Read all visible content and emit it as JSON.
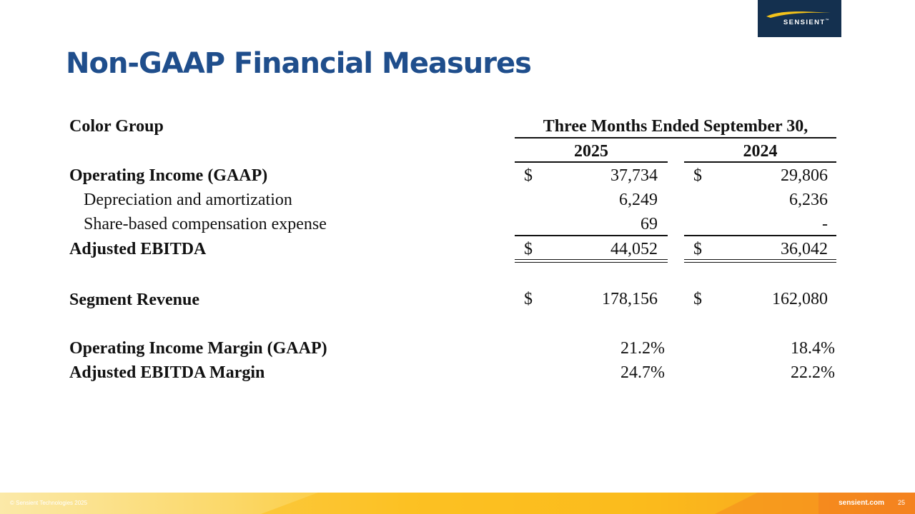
{
  "logo": {
    "brand": "SENSIENT",
    "trademark": "™"
  },
  "title": "Non-GAAP Financial Measures",
  "table": {
    "group_label": "Color Group",
    "period_header": "Three Months Ended September 30,",
    "years": [
      "2025",
      "2024"
    ],
    "currency_symbol": "$",
    "rows": {
      "operating_income": {
        "label": "Operating Income (GAAP)",
        "v2025": "37,734",
        "v2024": "29,806"
      },
      "depreciation": {
        "label": "Depreciation and amortization",
        "v2025": "6,249",
        "v2024": "6,236"
      },
      "share_based": {
        "label": "Share-based compensation expense",
        "v2025": "69",
        "v2024": "-"
      },
      "adjusted_ebitda": {
        "label": "Adjusted EBITDA",
        "v2025": "44,052",
        "v2024": "36,042"
      },
      "segment_revenue": {
        "label": "Segment Revenue",
        "v2025": "178,156",
        "v2024": "162,080"
      },
      "operating_margin": {
        "label": "Operating Income Margin (GAAP)",
        "v2025": "21.2%",
        "v2024": "18.4%"
      },
      "ebitda_margin": {
        "label": "Adjusted EBITDA Margin",
        "v2025": "24.7%",
        "v2024": "22.2%"
      }
    }
  },
  "footer": {
    "copyright": "© Sensient Technologies 2025",
    "website": "sensient.com",
    "page_number": "25"
  },
  "colors": {
    "title": "#1f4e8c",
    "logo_bg": "#14304f",
    "logo_swoosh": "#f3c21a"
  }
}
